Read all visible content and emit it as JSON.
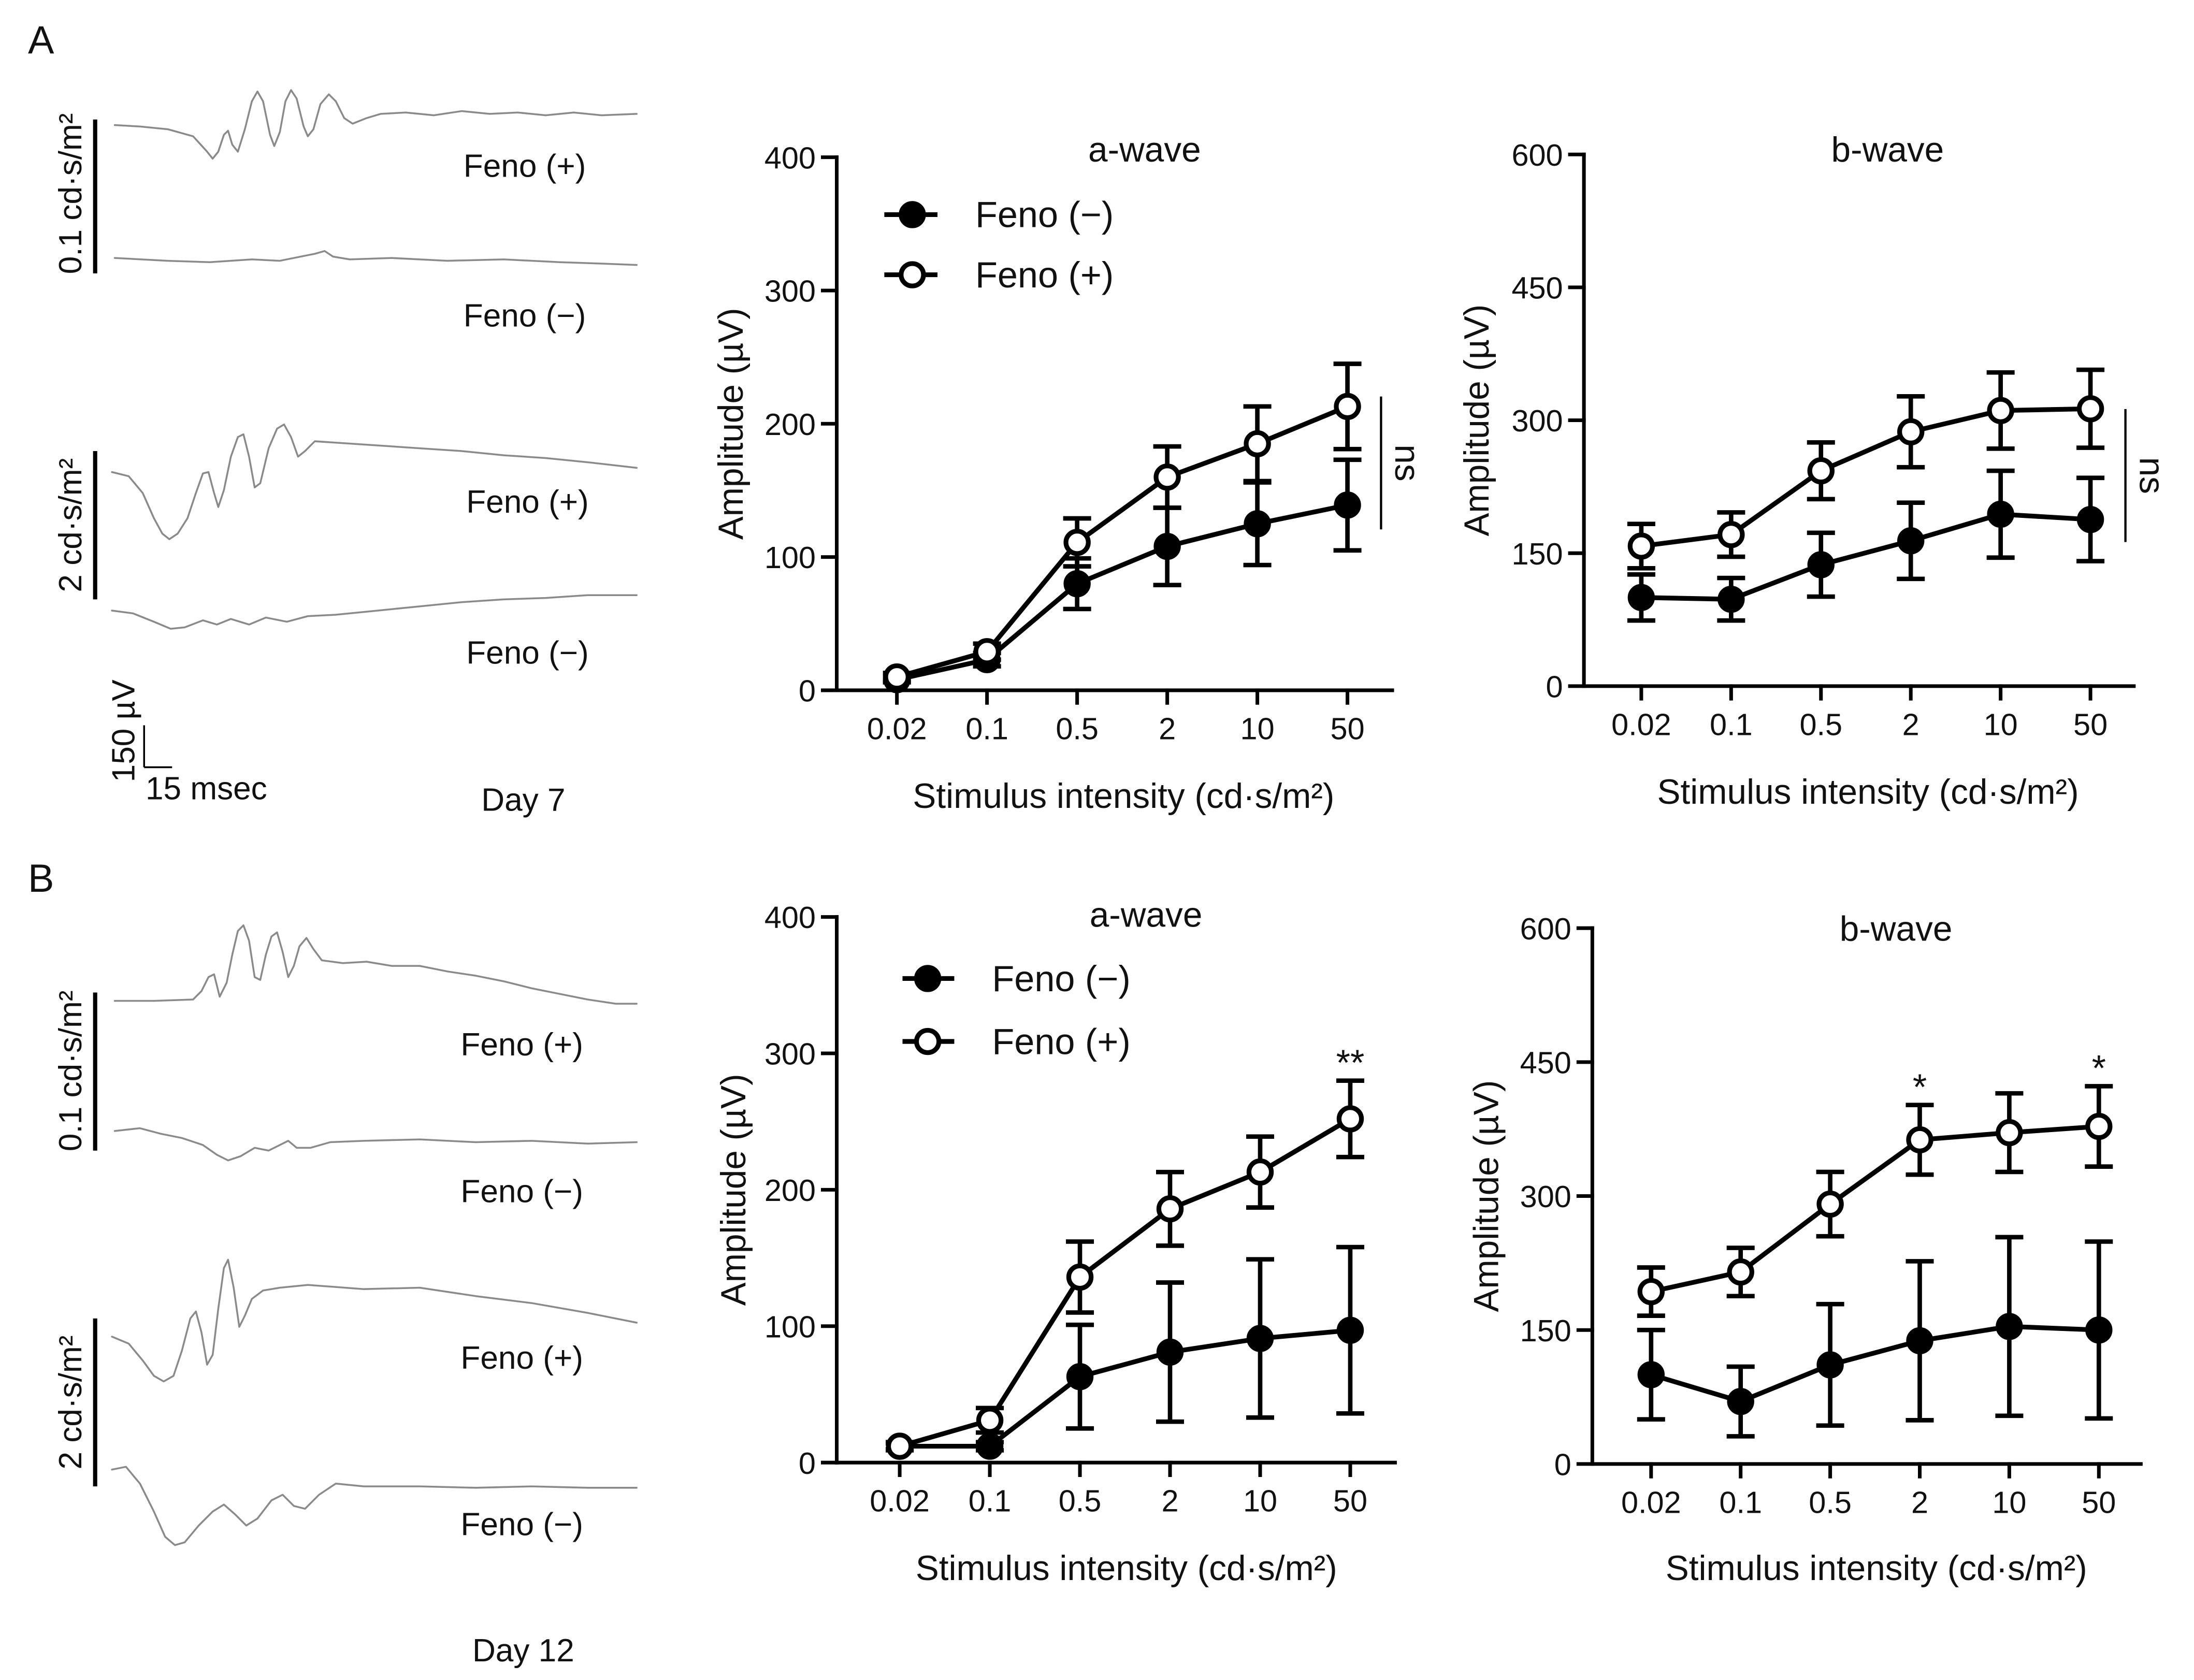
{
  "panels": [
    {
      "label": "A",
      "day": "Day 7",
      "traces": [
        {
          "intensity": "0.1 cd·s/m²",
          "feno_plus": "Feno (+)",
          "feno_minus": "Feno (−)"
        },
        {
          "intensity": "2 cd·s/m²",
          "feno_plus": "Feno (+)",
          "feno_minus": "Feno (−)"
        }
      ],
      "scale_bar": {
        "amplitude": "150 µV",
        "time": "15 msec"
      }
    },
    {
      "label": "B",
      "day": "Day 12",
      "traces": [
        {
          "intensity": "0.1 cd·s/m²",
          "feno_plus": "Feno (+)",
          "feno_minus": "Feno (−)"
        },
        {
          "intensity": "2 cd·s/m²",
          "feno_plus": "Feno (+)",
          "feno_minus": "Feno (−)"
        }
      ]
    }
  ],
  "chart_data": [
    {
      "type": "line",
      "title": "a-wave",
      "xlabel": "Stimulus intensity (cd·s/m²)",
      "ylabel": "Amplitude (µV)",
      "categories": [
        "0.02",
        "0.1",
        "0.5",
        "2",
        "10",
        "50"
      ],
      "ylim": [
        0,
        400
      ],
      "yticks": [
        0,
        100,
        200,
        300,
        400
      ],
      "legend": "top-left",
      "series": [
        {
          "name": "Feno (−)",
          "marker_fill": "#000000",
          "values": [
            8,
            23,
            80,
            108,
            125,
            139
          ],
          "errors": [
            2,
            5,
            19,
            29,
            31,
            34
          ]
        },
        {
          "name": "Feno (+)",
          "marker_fill": "#ffffff",
          "values": [
            10,
            29,
            111,
            160,
            185,
            213
          ],
          "errors": [
            3,
            6,
            18,
            23,
            28,
            32
          ]
        }
      ],
      "comparison_label": "ns"
    },
    {
      "type": "line",
      "title": "b-wave",
      "xlabel": "Stimulus intensity (cd·s/m²)",
      "ylabel": "Amplitude (µV)",
      "categories": [
        "0.02",
        "0.1",
        "0.5",
        "2",
        "10",
        "50"
      ],
      "ylim": [
        0,
        600
      ],
      "yticks": [
        0,
        150,
        300,
        450,
        600
      ],
      "series": [
        {
          "marker_fill": "#000000",
          "values": [
            100,
            98,
            137,
            164,
            194,
            188
          ],
          "errors": [
            26,
            24,
            36,
            43,
            49,
            47
          ]
        },
        {
          "marker_fill": "#ffffff",
          "values": [
            158,
            171,
            243,
            287,
            311,
            313
          ],
          "errors": [
            25,
            25,
            32,
            40,
            43,
            44
          ]
        }
      ],
      "comparison_label": "ns"
    },
    {
      "type": "line",
      "title": "a-wave",
      "xlabel": "Stimulus intensity (cd·s/m²)",
      "ylabel": "Amplitude (µV)",
      "categories": [
        "0.02",
        "0.1",
        "0.5",
        "2",
        "10",
        "50"
      ],
      "ylim": [
        0,
        400
      ],
      "yticks": [
        0,
        100,
        200,
        300,
        400
      ],
      "legend": "top-left",
      "series": [
        {
          "name": "Feno (−)",
          "marker_fill": "#000000",
          "values": [
            12,
            12,
            63,
            81,
            91,
            97
          ],
          "errors": [
            2,
            3,
            38,
            51,
            58,
            61
          ]
        },
        {
          "name": "Feno (+)",
          "marker_fill": "#ffffff",
          "values": [
            12,
            31,
            136,
            186,
            213,
            252
          ],
          "errors": [
            3,
            9,
            26,
            27,
            26,
            28
          ]
        }
      ],
      "significance": [
        {
          "category_index": 5,
          "text": "**"
        }
      ]
    },
    {
      "type": "line",
      "title": "b-wave",
      "xlabel": "Stimulus intensity (cd·s/m²)",
      "ylabel": "Amplitude (µV)",
      "categories": [
        "0.02",
        "0.1",
        "0.5",
        "2",
        "10",
        "50"
      ],
      "ylim": [
        0,
        600
      ],
      "yticks": [
        0,
        150,
        300,
        450,
        600
      ],
      "series": [
        {
          "marker_fill": "#000000",
          "values": [
            100,
            70,
            111,
            138,
            154,
            150
          ],
          "errors": [
            50,
            39,
            68,
            89,
            100,
            99
          ]
        },
        {
          "marker_fill": "#ffffff",
          "values": [
            193,
            215,
            291,
            363,
            371,
            378
          ],
          "errors": [
            27,
            27,
            36,
            39,
            44,
            45
          ]
        }
      ],
      "significance": [
        {
          "category_index": 3,
          "text": "*"
        },
        {
          "category_index": 5,
          "text": "*"
        }
      ]
    }
  ]
}
